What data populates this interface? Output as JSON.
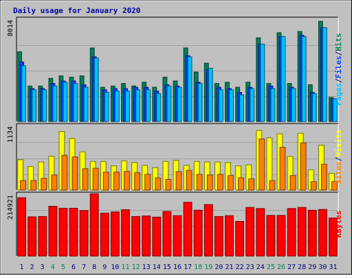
{
  "chart_data": {
    "type": "bar",
    "title": "Daily usage for January 2020",
    "categories": [
      "1",
      "2",
      "3",
      "4",
      "5",
      "6",
      "7",
      "8",
      "9",
      "10",
      "11",
      "12",
      "13",
      "14",
      "15",
      "16",
      "17",
      "18",
      "19",
      "20",
      "21",
      "22",
      "23",
      "24",
      "25",
      "26",
      "27",
      "28",
      "29",
      "30",
      "31"
    ],
    "weekend_days": [
      "4",
      "5",
      "11",
      "12",
      "18",
      "19",
      "25",
      "26"
    ],
    "panels": [
      {
        "id": "hits",
        "ymax_label": "8014",
        "ymax": 8014,
        "series": [
          {
            "name": "Hits",
            "color": "#00805c",
            "values": [
              5500,
              2800,
              2800,
              3400,
              3600,
              3500,
              3600,
              5800,
              2700,
              2800,
              3000,
              2800,
              3100,
              2700,
              3500,
              3200,
              5800,
              3900,
              4600,
              3000,
              3100,
              2700,
              3100,
              6600,
              3000,
              7000,
              3000,
              7100,
              2900,
              7900,
              1900
            ]
          },
          {
            "name": "Files",
            "color": "#0040ff",
            "values": [
              4700,
              2600,
              2600,
              3000,
              3200,
              3200,
              2900,
              5100,
              2500,
              2600,
              2600,
              2700,
              2700,
              2400,
              2900,
              2800,
              5200,
              3100,
              4100,
              2700,
              2600,
              2300,
              2700,
              6100,
              2800,
              6700,
              2700,
              6800,
              2300,
              7400,
              1800
            ]
          },
          {
            "name": "Pages",
            "color": "#00c0ff",
            "values": [
              4400,
              2500,
              2500,
              2800,
              3100,
              3000,
              2700,
              5000,
              2300,
              2400,
              2400,
              2500,
              2500,
              2200,
              2800,
              2700,
              5100,
              3000,
              4200,
              2500,
              2500,
              2100,
              2600,
              6100,
              2600,
              6700,
              2600,
              6700,
              2200,
              7400,
              1800
            ]
          }
        ],
        "axis_labels": [
          {
            "text": "Pages",
            "color": "#00c0ff"
          },
          {
            "text": "/",
            "color": "#000080"
          },
          {
            "text": "Files",
            "color": "#0040ff"
          },
          {
            "text": "/",
            "color": "#000080"
          },
          {
            "text": "Hits",
            "color": "#00805c"
          }
        ]
      },
      {
        "id": "visits",
        "ymax_label": "1134",
        "ymax": 1134,
        "series": [
          {
            "name": "Visits",
            "color": "#ffff00",
            "values": [
              540,
              420,
              500,
              600,
              1040,
              920,
              680,
              510,
              510,
              430,
              520,
              490,
              440,
              400,
              510,
              530,
              440,
              510,
              500,
              500,
              490,
              430,
              450,
              1060,
              930,
              1000,
              600,
              1010,
              360,
              800,
              300
            ]
          },
          {
            "name": "Sites",
            "color": "#ff8000",
            "values": [
              170,
              170,
              210,
              270,
              620,
              590,
              380,
              390,
              320,
              320,
              330,
              310,
              280,
              220,
              190,
              330,
              350,
              280,
              270,
              280,
              260,
              220,
              200,
              910,
              170,
              760,
              260,
              840,
              150,
              460,
              150
            ]
          }
        ],
        "axis_labels": [
          {
            "text": "Sites",
            "color": "#ff8000"
          },
          {
            "text": "/",
            "color": "#000080"
          },
          {
            "text": "Visits",
            "color": "#ffff00"
          }
        ]
      },
      {
        "id": "kbytes",
        "ymax_label": "214921",
        "ymax": 214921,
        "series": [
          {
            "name": "KBytes",
            "color": "#ff0000",
            "values": [
              205000,
              138000,
              139000,
              175000,
              168000,
              168000,
              160000,
              219000,
              151000,
              155000,
              163000,
              139000,
              141000,
              137000,
              157000,
              142000,
              189000,
              161000,
              181000,
              139000,
              142000,
              122000,
              171000,
              167000,
              143000,
              143000,
              167000,
              171000,
              161000,
              164000,
              134000
            ]
          }
        ],
        "axis_labels": [
          {
            "text": "KBytes",
            "color": "#ff0000"
          }
        ]
      }
    ],
    "colors": {
      "background": "#c0c0c0",
      "title": "#0000a0",
      "day_label": "#000080",
      "weekend_label": "#00805c",
      "grid": "#a0a0a0"
    }
  }
}
